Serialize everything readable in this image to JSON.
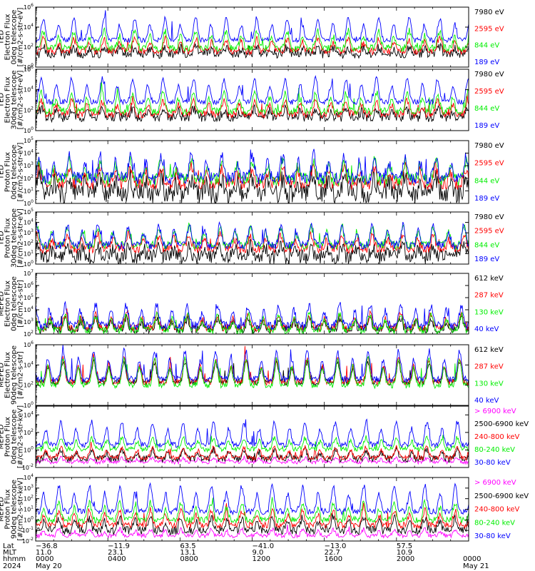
{
  "colors": {
    "blue": "#0000ff",
    "red": "#ff0000",
    "green": "#00ee00",
    "black": "#000000",
    "magenta": "#ff00ff"
  },
  "chart_data": [
    {
      "type": "line",
      "scale": "log",
      "ylabel": [
        "TED",
        "Electron Flux",
        "0deg telescope",
        "[#/cm2-s-str-eV]"
      ],
      "yticks": [
        {
          "exp": 0
        },
        {
          "exp": 2
        },
        {
          "exp": 4
        },
        {
          "exp": 6
        }
      ],
      "ylim_exp": [
        0,
        6
      ],
      "series": [
        {
          "name": "7980 eV",
          "color": "black",
          "base": 1.3,
          "amp": 0.7,
          "noise": 0.45
        },
        {
          "name": "2595 eV",
          "color": "red",
          "base": 1.6,
          "amp": 1.2,
          "noise": 0.35
        },
        {
          "name": "844 eV",
          "color": "green",
          "base": 1.9,
          "amp": 1.7,
          "noise": 0.35
        },
        {
          "name": "189 eV",
          "color": "blue",
          "base": 2.7,
          "amp": 2.2,
          "noise": 0.25
        }
      ]
    },
    {
      "type": "line",
      "scale": "log",
      "ylabel": [
        "TED",
        "Electron Flux",
        "30deg telescope",
        "[#/cm2-s-str-eV]"
      ],
      "yticks": [
        {
          "exp": 0
        },
        {
          "exp": 2
        },
        {
          "exp": 4
        },
        {
          "exp": 6
        }
      ],
      "ylim_exp": [
        0,
        6
      ],
      "series": [
        {
          "name": "7980 eV",
          "color": "black",
          "base": 1.3,
          "amp": 0.8,
          "noise": 0.45
        },
        {
          "name": "2595 eV",
          "color": "red",
          "base": 1.6,
          "amp": 1.3,
          "noise": 0.35
        },
        {
          "name": "844 eV",
          "color": "green",
          "base": 1.9,
          "amp": 1.8,
          "noise": 0.35
        },
        {
          "name": "189 eV",
          "color": "blue",
          "base": 2.8,
          "amp": 2.3,
          "noise": 0.25
        }
      ]
    },
    {
      "type": "line",
      "scale": "log",
      "ylabel": [
        "TED",
        "Proton Flux",
        "0deg telescope",
        "[#/cm2-s-str-eV]"
      ],
      "yticks": [
        {
          "exp": 0
        },
        {
          "exp": 1
        },
        {
          "exp": 2
        },
        {
          "exp": 3
        },
        {
          "exp": 4
        },
        {
          "exp": 5
        }
      ],
      "ylim_exp": [
        0,
        5
      ],
      "series": [
        {
          "name": "7980 eV",
          "color": "black",
          "base": 0.8,
          "amp": 1.2,
          "noise": 0.8
        },
        {
          "name": "2595 eV",
          "color": "red",
          "base": 1.6,
          "amp": 1.3,
          "noise": 0.5
        },
        {
          "name": "844 eV",
          "color": "green",
          "base": 1.9,
          "amp": 1.5,
          "noise": 0.5
        },
        {
          "name": "189 eV",
          "color": "blue",
          "base": 2.0,
          "amp": 1.8,
          "noise": 0.5
        }
      ]
    },
    {
      "type": "line",
      "scale": "log",
      "ylabel": [
        "TED",
        "Proton Flux",
        "30deg telescope",
        "[#/cm2-s-str-eV]"
      ],
      "yticks": [
        {
          "exp": 0
        },
        {
          "exp": 1
        },
        {
          "exp": 2
        },
        {
          "exp": 3
        },
        {
          "exp": 4
        },
        {
          "exp": 5
        }
      ],
      "ylim_exp": [
        0,
        5
      ],
      "series": [
        {
          "name": "7980 eV",
          "color": "black",
          "base": 0.7,
          "amp": 1.0,
          "noise": 0.7
        },
        {
          "name": "2595 eV",
          "color": "red",
          "base": 1.5,
          "amp": 1.3,
          "noise": 0.45
        },
        {
          "name": "844 eV",
          "color": "green",
          "base": 1.8,
          "amp": 1.8,
          "noise": 0.4
        },
        {
          "name": "189 eV",
          "color": "blue",
          "base": 1.8,
          "amp": 1.9,
          "noise": 0.4
        }
      ]
    },
    {
      "type": "line",
      "scale": "log",
      "ylabel": [
        "MEPED",
        "Electron Flux",
        "0deg telescope",
        "[#/cm2-s-str]"
      ],
      "yticks": [
        {
          "exp": 2
        },
        {
          "exp": 3
        },
        {
          "exp": 4
        },
        {
          "exp": 5
        },
        {
          "exp": 6
        },
        {
          "exp": 7
        }
      ],
      "ylim_exp": [
        2,
        7
      ],
      "series": [
        {
          "name": "612 keV",
          "color": "black",
          "base": 2.4,
          "amp": 0.9,
          "noise": 0.35
        },
        {
          "name": "287 keV",
          "color": "red",
          "base": 2.5,
          "amp": 1.1,
          "noise": 0.3
        },
        {
          "name": "130 keV",
          "color": "green",
          "base": 2.3,
          "amp": 1.3,
          "noise": 0.3
        },
        {
          "name": "40 keV",
          "color": "blue",
          "base": 2.7,
          "amp": 1.7,
          "noise": 0.35
        }
      ]
    },
    {
      "type": "line",
      "scale": "log",
      "ylabel": [
        "MEPED",
        "Electron Flux",
        "90deg telescope",
        "[#/cm2-s-str]"
      ],
      "yticks": [
        {
          "exp": 0
        },
        {
          "exp": 2
        },
        {
          "exp": 4
        },
        {
          "exp": 6
        }
      ],
      "ylim_exp": [
        0,
        6
      ],
      "series": [
        {
          "name": "612 keV",
          "color": "black",
          "base": 2.3,
          "amp": 2.0,
          "noise": 0.3
        },
        {
          "name": "287 keV",
          "color": "red",
          "base": 2.3,
          "amp": 2.3,
          "noise": 0.3
        },
        {
          "name": "130 keV",
          "color": "green",
          "base": 2.0,
          "amp": 2.6,
          "noise": 0.3
        },
        {
          "name": "40 keV",
          "color": "blue",
          "base": 2.6,
          "amp": 2.8,
          "noise": 0.3
        }
      ]
    },
    {
      "type": "line",
      "scale": "log",
      "ylabel": [
        "MEPED",
        "Proton Flux",
        "0deg telescope",
        "[#/cm2-s-str-keV]"
      ],
      "yticks": [
        {
          "exp": -2
        },
        {
          "exp": 0
        },
        {
          "exp": 2
        },
        {
          "exp": 4
        }
      ],
      "ylim_exp": [
        -2,
        5
      ],
      "series": [
        {
          "name": "> 6900 keV",
          "color": "magenta",
          "base": -1.4,
          "amp": 0.5,
          "noise": 0.2
        },
        {
          "name": "2500-6900 keV",
          "color": "black",
          "base": -1.0,
          "amp": 1.0,
          "noise": 0.4
        },
        {
          "name": "240-800 keV",
          "color": "red",
          "base": -0.9,
          "amp": 1.2,
          "noise": 0.25
        },
        {
          "name": "80-240 keV",
          "color": "green",
          "base": 0.1,
          "amp": 1.3,
          "noise": 0.3
        },
        {
          "name": "30-80 keV",
          "color": "blue",
          "base": 0.6,
          "amp": 2.6,
          "noise": 0.3
        }
      ]
    },
    {
      "type": "line",
      "scale": "log",
      "ylabel": [
        "MEPED",
        "Proton Flux",
        "90deg telescope",
        "[#/cm2-s-str-keV]"
      ],
      "yticks": [
        {
          "exp": -2
        },
        {
          "exp": -1
        },
        {
          "exp": 0
        },
        {
          "exp": 1
        },
        {
          "exp": 2
        },
        {
          "exp": 3
        },
        {
          "exp": 4
        }
      ],
      "ylim_exp": [
        -2,
        4
      ],
      "series": [
        {
          "name": "> 6900 keV",
          "color": "magenta",
          "base": -1.5,
          "amp": 0.6,
          "noise": 0.2
        },
        {
          "name": "2500-6900 keV",
          "color": "black",
          "base": -1.0,
          "amp": 1.2,
          "noise": 0.4
        },
        {
          "name": "240-800 keV",
          "color": "red",
          "base": -0.5,
          "amp": 1.4,
          "noise": 0.3
        },
        {
          "name": "80-240 keV",
          "color": "green",
          "base": 0.0,
          "amp": 1.6,
          "noise": 0.3
        },
        {
          "name": "30-80 keV",
          "color": "blue",
          "base": 0.8,
          "amp": 2.4,
          "noise": 0.3
        }
      ]
    }
  ],
  "footer": {
    "row_labels": [
      "Lat",
      "MLT",
      "hhmm",
      "2024"
    ],
    "columns": [
      {
        "lat": "−36.8",
        "mlt": "11.0",
        "hhmm": "0000",
        "date": "May 20"
      },
      {
        "lat": "−11.9",
        "mlt": "23.1",
        "hhmm": "0400",
        "date": ""
      },
      {
        "lat": "63.5",
        "mlt": "13.1",
        "hhmm": "0800",
        "date": ""
      },
      {
        "lat": "−41.0",
        "mlt": "9.0",
        "hhmm": "1200",
        "date": ""
      },
      {
        "lat": "−13.0",
        "mlt": "22.7",
        "hhmm": "1600",
        "date": ""
      },
      {
        "lat": "57.5",
        "mlt": "10.9",
        "hhmm": "2000",
        "date": ""
      },
      {
        "lat": "",
        "mlt": "",
        "hhmm": "0000",
        "date": "May 21"
      }
    ]
  }
}
